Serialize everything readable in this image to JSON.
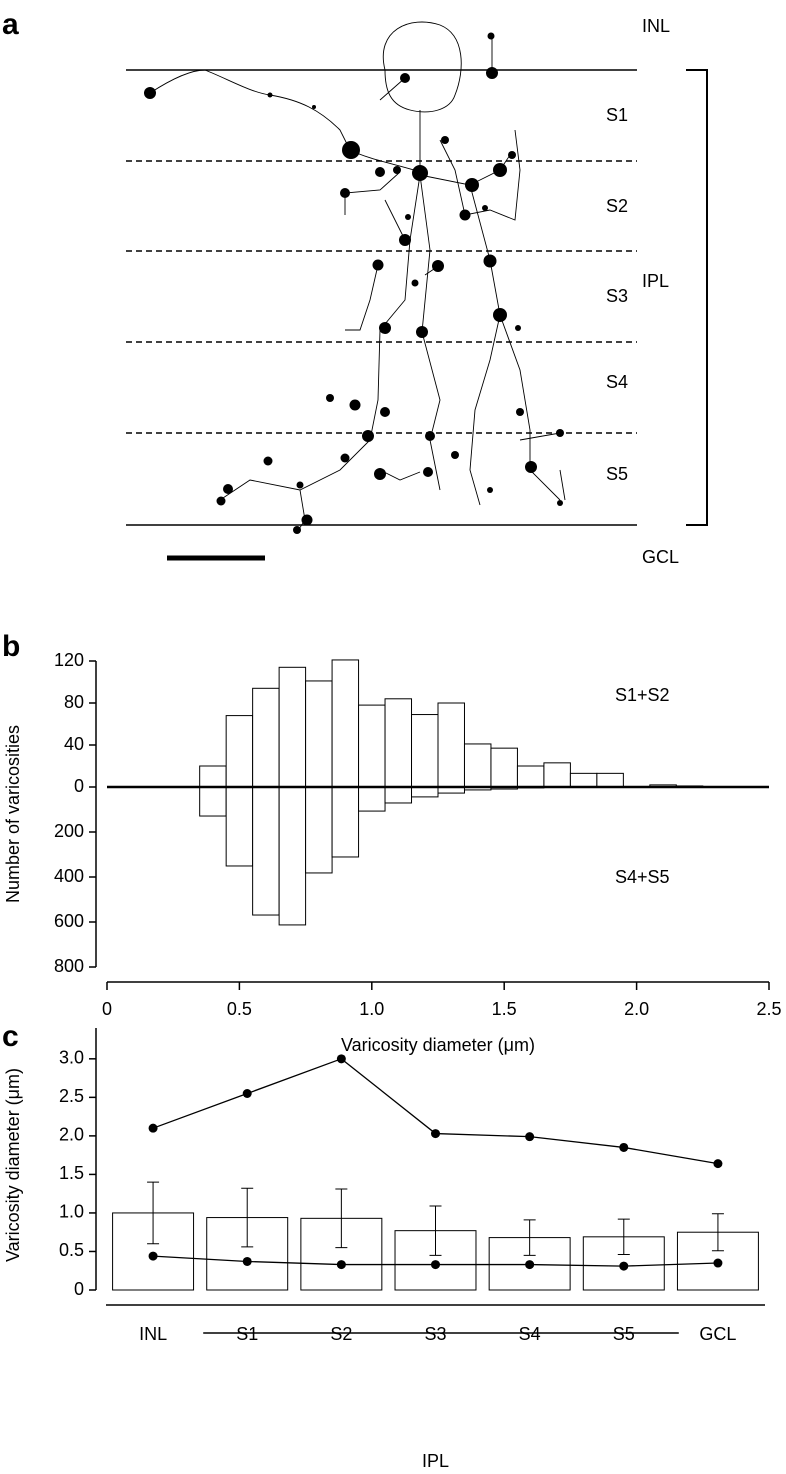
{
  "panel_a": {
    "label": "a",
    "top_layer": "INL",
    "bottom_layer": "GCL",
    "strata": [
      "S1",
      "S2",
      "S3",
      "S4",
      "S5"
    ],
    "bracket": "IPL"
  },
  "chart_data": [
    {
      "type": "histogram",
      "label": "b",
      "ylabel": "Number of varicosities",
      "xlabel": "Varicosity diameter (μm)",
      "bins": [
        0.35,
        0.45,
        0.55,
        0.65,
        0.75,
        0.85,
        0.95,
        1.05,
        1.15,
        1.25,
        1.35,
        1.45,
        1.55,
        1.65,
        1.75,
        1.85,
        1.95,
        2.05,
        2.15,
        2.25
      ],
      "series": [
        {
          "name": "S1+S2",
          "color": "#ffffff",
          "values": [
            20,
            68,
            94,
            114,
            101,
            121,
            78,
            84,
            69,
            80,
            41,
            37,
            20,
            23,
            13,
            13,
            0,
            2,
            1
          ]
        },
        {
          "name": "S4+S5",
          "color": "#ffffff",
          "axis": "y2",
          "values": [
            129,
            351,
            569,
            613,
            382,
            311,
            107,
            71,
            44,
            27,
            13,
            9,
            4,
            0,
            0,
            0,
            0,
            0,
            0
          ]
        }
      ],
      "xlim": [
        0,
        2.5
      ],
      "xticks": [
        0,
        0.5,
        {
          "value": 1,
          "label": "1.0"
        },
        1.5,
        {
          "value": 2,
          "label": "2.0"
        },
        2.5
      ],
      "ylim": [
        0,
        120
      ],
      "yticks": [
        0,
        40,
        80,
        120
      ],
      "y2lim": [
        0,
        800
      ],
      "y2ticks": [
        200,
        400,
        600,
        800
      ]
    },
    {
      "type": "bar",
      "label": "c",
      "ylabel": "Varicosity diameter (μm)",
      "categories": [
        "INL",
        "S1",
        "S2",
        "S3",
        "S4",
        "S5",
        "GCL"
      ],
      "group_label": "IPL",
      "series": [
        {
          "kind": "bar",
          "color": "#ffffff",
          "values": [
            1.0,
            0.94,
            0.93,
            0.77,
            0.68,
            0.69,
            0.75
          ],
          "errors": [
            0.4,
            0.38,
            0.38,
            0.32,
            0.23,
            0.23,
            0.24
          ]
        },
        {
          "kind": "line",
          "color": "#000000",
          "values": [
            2.1,
            2.55,
            3.0,
            2.03,
            1.99,
            1.85,
            1.64
          ]
        },
        {
          "kind": "line",
          "color": "#000000",
          "values": [
            0.44,
            0.37,
            0.33,
            0.33,
            0.33,
            0.31,
            0.35
          ]
        }
      ],
      "ylim": [
        0,
        3.4
      ],
      "yticks": [
        0,
        0.5,
        {
          "value": 1,
          "label": "1.0"
        },
        1.5,
        {
          "value": 2,
          "label": "2.0"
        },
        2.5,
        {
          "value": 3,
          "label": "3.0"
        }
      ]
    }
  ]
}
